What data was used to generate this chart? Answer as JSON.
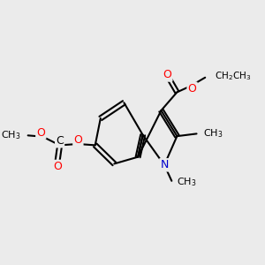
{
  "bg_color": "#ebebeb",
  "bond_color": "#000000",
  "bond_width": 1.5,
  "atom_colors": {
    "O": "#ff0000",
    "N": "#0000cc",
    "C": "#000000"
  },
  "font_size": 9
}
